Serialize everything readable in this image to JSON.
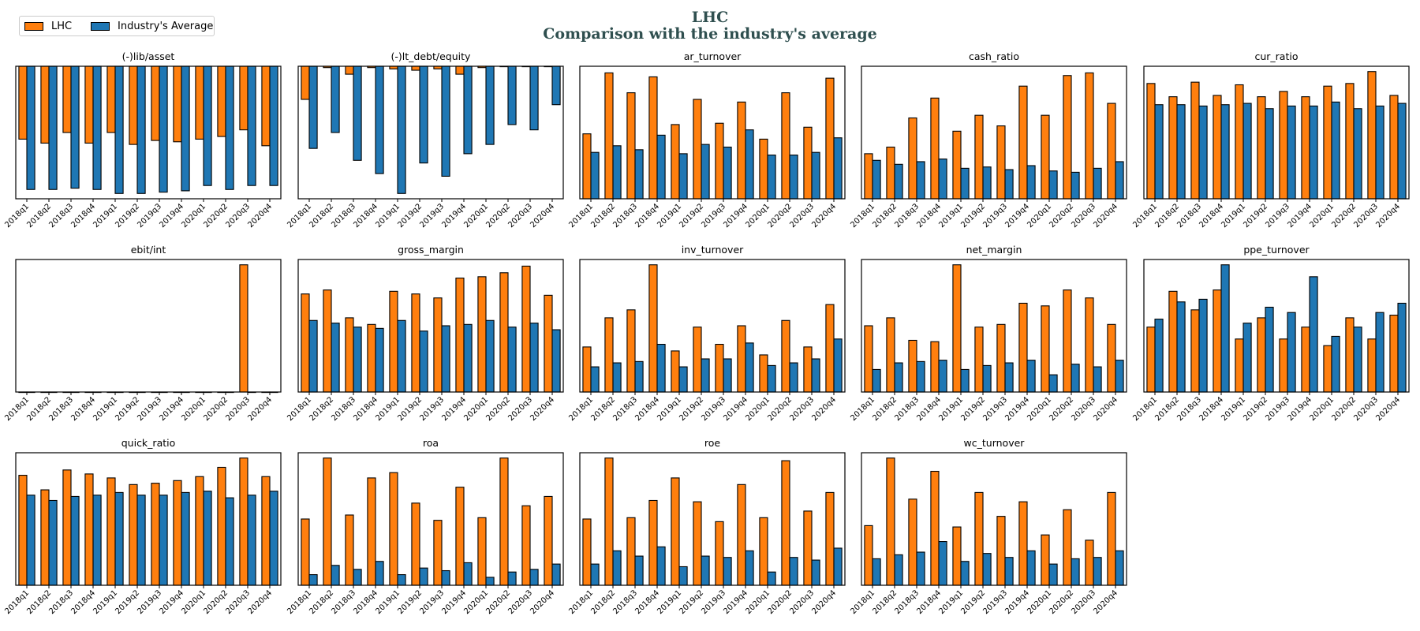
{
  "figure": {
    "title_line1": "LHC",
    "title_line2": "Comparison with the industry's average"
  },
  "legend": {
    "items": [
      {
        "label": "LHC",
        "color": "#ff7f0e"
      },
      {
        "label": "Industry's Average",
        "color": "#1f77b4"
      }
    ]
  },
  "colors": {
    "company": "#ff7f0e",
    "industry": "#1f77b4"
  },
  "chart_data": [
    {
      "type": "bar",
      "title": "(-)lib/asset",
      "categories": [
        "2018q1",
        "2018q2",
        "2018q3",
        "2018q4",
        "2019q1",
        "2019q2",
        "2019q3",
        "2019q4",
        "2020q1",
        "2020q2",
        "2020q3",
        "2020q4"
      ],
      "series": [
        {
          "name": "LHC",
          "values": [
            -0.55,
            -0.58,
            -0.5,
            -0.58,
            -0.5,
            -0.59,
            -0.56,
            -0.57,
            -0.55,
            -0.53,
            -0.48,
            -0.6
          ]
        },
        {
          "name": "Industry's Average",
          "values": [
            -0.93,
            -0.93,
            -0.92,
            -0.93,
            -0.96,
            -0.96,
            -0.95,
            -0.94,
            -0.9,
            -0.93,
            -0.9,
            -0.9
          ]
        }
      ],
      "ylim": [
        -1.0,
        0.0
      ]
    },
    {
      "type": "bar",
      "title": "(-)lt_debt/equity",
      "categories": [
        "2018q1",
        "2018q2",
        "2018q3",
        "2018q4",
        "2019q1",
        "2019q2",
        "2019q3",
        "2019q4",
        "2020q1",
        "2020q2",
        "2020q3",
        "2020q4"
      ],
      "series": [
        {
          "name": "LHC",
          "values": [
            -0.25,
            -0.01,
            -0.06,
            -0.01,
            -0.02,
            -0.03,
            -0.02,
            -0.06,
            -0.01,
            -0.0,
            -0.0,
            -0.0
          ]
        },
        {
          "name": "Industry's Average",
          "values": [
            -0.62,
            -0.5,
            -0.71,
            -0.81,
            -0.96,
            -0.73,
            -0.83,
            -0.66,
            -0.59,
            -0.44,
            -0.48,
            -0.29
          ]
        }
      ],
      "ylim": [
        -1.0,
        0.0
      ]
    },
    {
      "type": "bar",
      "title": "ar_turnover",
      "categories": [
        "2018q1",
        "2018q2",
        "2018q3",
        "2018q4",
        "2019q1",
        "2019q2",
        "2019q3",
        "2019q4",
        "2020q1",
        "2020q2",
        "2020q3",
        "2020q4"
      ],
      "series": [
        {
          "name": "LHC",
          "values": [
            0.49,
            0.95,
            0.8,
            0.92,
            0.56,
            0.75,
            0.57,
            0.73,
            0.45,
            0.8,
            0.54,
            0.91
          ]
        },
        {
          "name": "Industry's Average",
          "values": [
            0.35,
            0.4,
            0.37,
            0.48,
            0.34,
            0.41,
            0.39,
            0.52,
            0.33,
            0.33,
            0.35,
            0.46
          ]
        }
      ],
      "ylim": [
        0,
        1.0
      ]
    },
    {
      "type": "bar",
      "title": "cash_ratio",
      "categories": [
        "2018q1",
        "2018q2",
        "2018q3",
        "2018q4",
        "2019q1",
        "2019q2",
        "2019q3",
        "2019q4",
        "2020q1",
        "2020q2",
        "2020q3",
        "2020q4"
      ],
      "series": [
        {
          "name": "LHC",
          "values": [
            0.34,
            0.39,
            0.61,
            0.76,
            0.51,
            0.63,
            0.55,
            0.85,
            0.63,
            0.93,
            0.95,
            0.72
          ]
        },
        {
          "name": "Industry's Average",
          "values": [
            0.29,
            0.26,
            0.28,
            0.3,
            0.23,
            0.24,
            0.22,
            0.25,
            0.21,
            0.2,
            0.23,
            0.28
          ]
        }
      ],
      "ylim": [
        0,
        1.0
      ]
    },
    {
      "type": "bar",
      "title": "cur_ratio",
      "categories": [
        "2018q1",
        "2018q2",
        "2018q3",
        "2018q4",
        "2019q1",
        "2019q2",
        "2019q3",
        "2019q4",
        "2020q1",
        "2020q2",
        "2020q3",
        "2020q4"
      ],
      "series": [
        {
          "name": "LHC",
          "values": [
            0.87,
            0.77,
            0.88,
            0.78,
            0.86,
            0.77,
            0.81,
            0.77,
            0.85,
            0.87,
            0.96,
            0.78
          ]
        },
        {
          "name": "Industry's Average",
          "values": [
            0.71,
            0.71,
            0.7,
            0.71,
            0.72,
            0.68,
            0.7,
            0.7,
            0.73,
            0.68,
            0.7,
            0.72
          ]
        }
      ],
      "ylim": [
        0,
        1.0
      ]
    },
    {
      "type": "bar",
      "title": "ebit/int",
      "categories": [
        "2018q1",
        "2018q2",
        "2018q3",
        "2018q4",
        "2019q1",
        "2019q2",
        "2019q3",
        "2019q4",
        "2020q1",
        "2020q2",
        "2020q3",
        "2020q4"
      ],
      "series": [
        {
          "name": "LHC",
          "values": [
            0,
            0,
            0,
            0,
            0,
            0,
            0,
            0,
            0,
            0,
            0.96,
            0
          ]
        },
        {
          "name": "Industry's Average",
          "values": [
            0,
            0,
            0,
            0,
            0,
            0,
            0,
            0,
            0,
            0,
            0,
            0
          ]
        }
      ],
      "ylim": [
        0,
        1.0
      ]
    },
    {
      "type": "bar",
      "title": "gross_margin",
      "categories": [
        "2018q1",
        "2018q2",
        "2018q3",
        "2018q4",
        "2019q1",
        "2019q2",
        "2019q3",
        "2019q4",
        "2020q1",
        "2020q2",
        "2020q3",
        "2020q4"
      ],
      "series": [
        {
          "name": "LHC",
          "values": [
            0.74,
            0.77,
            0.56,
            0.51,
            0.76,
            0.74,
            0.71,
            0.86,
            0.87,
            0.9,
            0.95,
            0.73
          ]
        },
        {
          "name": "Industry's Average",
          "values": [
            0.54,
            0.52,
            0.49,
            0.48,
            0.54,
            0.46,
            0.5,
            0.51,
            0.54,
            0.49,
            0.52,
            0.47
          ]
        }
      ],
      "ylim": [
        0,
        1.0
      ]
    },
    {
      "type": "bar",
      "title": "inv_turnover",
      "categories": [
        "2018q1",
        "2018q2",
        "2018q3",
        "2018q4",
        "2019q1",
        "2019q2",
        "2019q3",
        "2019q4",
        "2020q1",
        "2020q2",
        "2020q3",
        "2020q4"
      ],
      "series": [
        {
          "name": "LHC",
          "values": [
            0.34,
            0.56,
            0.62,
            0.96,
            0.31,
            0.49,
            0.36,
            0.5,
            0.28,
            0.54,
            0.34,
            0.66
          ]
        },
        {
          "name": "Industry's Average",
          "values": [
            0.19,
            0.22,
            0.23,
            0.36,
            0.19,
            0.25,
            0.25,
            0.37,
            0.2,
            0.22,
            0.25,
            0.4
          ]
        }
      ],
      "ylim": [
        0,
        1.0
      ]
    },
    {
      "type": "bar",
      "title": "net_margin",
      "categories": [
        "2018q1",
        "2018q2",
        "2018q3",
        "2018q4",
        "2019q1",
        "2019q2",
        "2019q3",
        "2019q4",
        "2020q1",
        "2020q2",
        "2020q3",
        "2020q4"
      ],
      "series": [
        {
          "name": "LHC",
          "values": [
            0.5,
            0.56,
            0.39,
            0.38,
            0.96,
            0.49,
            0.51,
            0.67,
            0.65,
            0.77,
            0.71,
            0.51
          ]
        },
        {
          "name": "Industry's Average",
          "values": [
            0.17,
            0.22,
            0.23,
            0.24,
            0.17,
            0.2,
            0.22,
            0.24,
            0.13,
            0.21,
            0.19,
            0.24
          ]
        }
      ],
      "ylim": [
        0,
        1.0
      ]
    },
    {
      "type": "bar",
      "title": "ppe_turnover",
      "categories": [
        "2018q1",
        "2018q2",
        "2018q3",
        "2018q4",
        "2019q1",
        "2019q2",
        "2019q3",
        "2019q4",
        "2020q1",
        "2020q2",
        "2020q3",
        "2020q4"
      ],
      "series": [
        {
          "name": "LHC",
          "values": [
            0.49,
            0.76,
            0.62,
            0.77,
            0.4,
            0.56,
            0.4,
            0.49,
            0.35,
            0.56,
            0.4,
            0.58
          ]
        },
        {
          "name": "Industry's Average",
          "values": [
            0.55,
            0.68,
            0.7,
            0.96,
            0.52,
            0.64,
            0.6,
            0.87,
            0.42,
            0.49,
            0.6,
            0.67
          ]
        }
      ],
      "ylim": [
        0,
        1.0
      ]
    },
    {
      "type": "bar",
      "title": "quick_ratio",
      "categories": [
        "2018q1",
        "2018q2",
        "2018q3",
        "2018q4",
        "2019q1",
        "2019q2",
        "2019q3",
        "2019q4",
        "2020q1",
        "2020q2",
        "2020q3",
        "2020q4"
      ],
      "series": [
        {
          "name": "LHC",
          "values": [
            0.83,
            0.72,
            0.87,
            0.84,
            0.81,
            0.76,
            0.77,
            0.79,
            0.82,
            0.89,
            0.96,
            0.82
          ]
        },
        {
          "name": "Industry's Average",
          "values": [
            0.68,
            0.64,
            0.67,
            0.68,
            0.7,
            0.68,
            0.68,
            0.7,
            0.71,
            0.66,
            0.68,
            0.71
          ]
        }
      ],
      "ylim": [
        0,
        1.0
      ]
    },
    {
      "type": "bar",
      "title": "roa",
      "categories": [
        "2018q1",
        "2018q2",
        "2018q3",
        "2018q4",
        "2019q1",
        "2019q2",
        "2019q3",
        "2019q4",
        "2020q1",
        "2020q2",
        "2020q3",
        "2020q4"
      ],
      "series": [
        {
          "name": "LHC",
          "values": [
            0.5,
            0.96,
            0.53,
            0.81,
            0.85,
            0.62,
            0.49,
            0.74,
            0.51,
            0.96,
            0.6,
            0.67
          ]
        },
        {
          "name": "Industry's Average",
          "values": [
            0.08,
            0.15,
            0.12,
            0.18,
            0.08,
            0.13,
            0.11,
            0.17,
            0.06,
            0.1,
            0.12,
            0.16
          ]
        }
      ],
      "ylim": [
        0,
        1.0
      ]
    },
    {
      "type": "bar",
      "title": "roe",
      "categories": [
        "2018q1",
        "2018q2",
        "2018q3",
        "2018q4",
        "2019q1",
        "2019q2",
        "2019q3",
        "2019q4",
        "2020q1",
        "2020q2",
        "2020q3",
        "2020q4"
      ],
      "series": [
        {
          "name": "LHC",
          "values": [
            0.5,
            0.96,
            0.51,
            0.64,
            0.81,
            0.63,
            0.48,
            0.76,
            0.51,
            0.94,
            0.56,
            0.7
          ]
        },
        {
          "name": "Industry's Average",
          "values": [
            0.16,
            0.26,
            0.22,
            0.29,
            0.14,
            0.22,
            0.21,
            0.26,
            0.1,
            0.21,
            0.19,
            0.28
          ]
        }
      ],
      "ylim": [
        0,
        1.0
      ]
    },
    {
      "type": "bar",
      "title": "wc_turnover",
      "categories": [
        "2018q1",
        "2018q2",
        "2018q3",
        "2018q4",
        "2019q1",
        "2019q2",
        "2019q3",
        "2019q4",
        "2020q1",
        "2020q2",
        "2020q3",
        "2020q4"
      ],
      "series": [
        {
          "name": "LHC",
          "values": [
            0.45,
            0.96,
            0.65,
            0.86,
            0.44,
            0.7,
            0.52,
            0.63,
            0.38,
            0.57,
            0.34,
            0.7
          ]
        },
        {
          "name": "Industry's Average",
          "values": [
            0.2,
            0.23,
            0.25,
            0.33,
            0.18,
            0.24,
            0.21,
            0.26,
            0.16,
            0.2,
            0.21,
            0.26
          ]
        }
      ],
      "ylim": [
        0,
        1.0
      ]
    }
  ]
}
